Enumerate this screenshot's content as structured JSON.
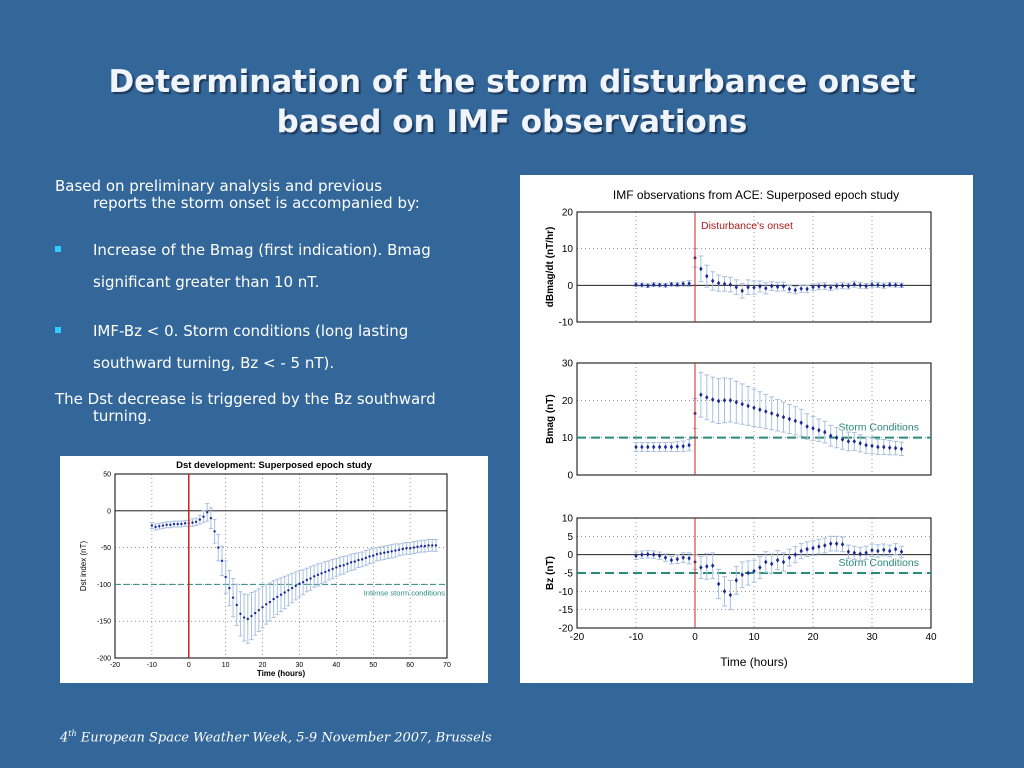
{
  "slide": {
    "title_line1": "Determination of the storm disturbance onset",
    "title_line2": "based on IMF observations",
    "intro_line1": "Based on preliminary analysis and previous",
    "intro_line2": "reports the storm onset is accompanied by:",
    "bullets": [
      {
        "line1": "Increase of the Bmag (first indication). Bmag",
        "line2": "significant greater than 10 nT."
      },
      {
        "line1": "IMF-Bz < 0. Storm conditions (long lasting",
        "line2": "southward turning, Bz < - 5 nT)."
      }
    ],
    "conclusion_line1": "The Dst decrease is triggered by the Bz southward",
    "conclusion_line2": "turning.",
    "footer_num": "4",
    "footer_sup": "th",
    "footer_text": " European Space Weather Week, 5-9 November 2007, Brussels"
  },
  "colors": {
    "background": "#336699",
    "bullet": "#33ccff",
    "onset_line": "#cc2222",
    "storm_line": "#2a8a7a",
    "data": "#1a2a9a",
    "errorbar": "#a8c0e0"
  },
  "chart_data": [
    {
      "type": "line",
      "title": "Dst development: Superposed epoch study",
      "xlabel": "Time (hours)",
      "ylabel": "Dst index (nT)",
      "xlim": [
        -20,
        70
      ],
      "ylim": [
        -200,
        50
      ],
      "xticks": [
        -20,
        -10,
        0,
        10,
        20,
        30,
        40,
        50,
        60,
        70
      ],
      "yticks": [
        50,
        0,
        -50,
        -100,
        -150,
        -200
      ],
      "grid": true,
      "reference_lines": [
        {
          "axis": "x",
          "value": 0,
          "color": "#cc2222"
        },
        {
          "axis": "y",
          "value": -100,
          "label": "Intense storm conditions",
          "style": "dashed"
        }
      ],
      "series": [
        {
          "x": [
            -10,
            -9,
            -8,
            -7,
            -6,
            -5,
            -4,
            -3,
            -2,
            -1,
            0,
            1,
            2,
            3,
            4,
            5,
            6,
            7,
            8,
            9,
            10,
            11,
            12,
            13,
            14,
            15,
            16,
            17,
            18,
            19,
            20,
            21,
            22,
            23,
            24,
            25,
            26,
            27,
            28,
            29,
            30,
            31,
            32,
            33,
            34,
            35,
            36,
            37,
            38,
            39,
            40,
            41,
            42,
            43,
            44,
            45,
            46,
            47,
            48,
            49,
            50,
            51,
            52,
            53,
            54,
            55,
            56,
            57,
            58,
            59,
            60,
            61,
            62,
            63,
            64,
            65,
            66,
            67
          ],
          "y": [
            -20,
            -22,
            -21,
            -20,
            -19,
            -19,
            -18,
            -18,
            -18,
            -17,
            -17,
            -16,
            -15,
            -12,
            -8,
            -2,
            -10,
            -28,
            -50,
            -68,
            -90,
            -105,
            -118,
            -128,
            -140,
            -145,
            -147,
            -143,
            -139,
            -135,
            -131,
            -127,
            -124,
            -120,
            -117,
            -114,
            -111,
            -108,
            -105,
            -102,
            -99,
            -97,
            -94,
            -92,
            -89,
            -87,
            -85,
            -83,
            -81,
            -79,
            -77,
            -75,
            -74,
            -72,
            -70,
            -69,
            -67,
            -66,
            -64,
            -62,
            -61,
            -59,
            -58,
            -57,
            -56,
            -55,
            -54,
            -53,
            -52,
            -51,
            -51,
            -50,
            -49,
            -48,
            -48,
            -47,
            -47,
            -47
          ],
          "err": [
            4,
            4,
            4,
            4,
            4,
            4,
            4,
            4,
            4,
            4,
            4,
            5,
            5,
            6,
            8,
            12,
            14,
            16,
            18,
            20,
            22,
            24,
            26,
            28,
            30,
            32,
            33,
            32,
            30,
            29,
            28,
            27,
            26,
            25,
            24,
            23,
            22,
            21,
            20,
            19,
            18,
            17,
            16,
            16,
            15,
            15,
            14,
            14,
            13,
            13,
            12,
            12,
            12,
            11,
            11,
            11,
            10,
            10,
            10,
            10,
            10,
            9,
            9,
            9,
            9,
            9,
            9,
            8,
            8,
            8,
            8,
            8,
            8,
            8,
            8,
            8,
            8,
            8
          ]
        }
      ]
    },
    {
      "type": "scatter",
      "title": "IMF observations from ACE: Superposed epoch study",
      "xlabel": "Time (hours)",
      "xlim": [
        -20,
        40
      ],
      "xticks": [
        -20,
        -10,
        0,
        10,
        20,
        30,
        40
      ],
      "grid": true,
      "onset_label": "Disturbance's onset",
      "panels": [
        {
          "ylabel": "dBmag/dt (nT/hr)",
          "ylim": [
            -10,
            20
          ],
          "yticks": [
            20,
            10,
            0,
            -10
          ],
          "x": [
            -10,
            -9,
            -8,
            -7,
            -6,
            -5,
            -4,
            -3,
            -2,
            -1,
            0,
            1,
            2,
            3,
            4,
            5,
            6,
            7,
            8,
            9,
            10,
            11,
            12,
            13,
            14,
            15,
            16,
            17,
            18,
            19,
            20,
            21,
            22,
            23,
            24,
            25,
            26,
            27,
            28,
            29,
            30,
            31,
            32,
            33,
            34,
            35
          ],
          "y": [
            0.2,
            0.1,
            -0.1,
            0.2,
            0.1,
            0.0,
            0.3,
            0.2,
            0.4,
            0.5,
            7.5,
            4.5,
            2.5,
            1.2,
            0.6,
            0.4,
            0.2,
            -0.5,
            -1.5,
            -0.5,
            -0.6,
            -0.3,
            -0.8,
            -0.2,
            -0.4,
            -0.3,
            -1.0,
            -1.3,
            -0.9,
            -1.0,
            -0.5,
            -0.3,
            -0.2,
            -0.6,
            -0.2,
            -0.1,
            -0.2,
            0.3,
            0.0,
            -0.2,
            0.2,
            0.1,
            -0.1,
            0.2,
            0.1,
            0.0
          ],
          "err": [
            0.5,
            0.5,
            0.5,
            0.5,
            0.5,
            0.5,
            0.5,
            0.5,
            0.6,
            0.8,
            2.5,
            3.5,
            3.0,
            2.5,
            2.2,
            2.0,
            2.0,
            2.0,
            2.0,
            2.0,
            1.8,
            1.5,
            1.5,
            1.2,
            1.2,
            1.2,
            1.0,
            1.0,
            1.0,
            1.0,
            0.9,
            0.9,
            0.9,
            0.8,
            0.8,
            0.8,
            0.8,
            0.8,
            0.8,
            0.7,
            0.7,
            0.7,
            0.7,
            0.6,
            0.6,
            0.6
          ]
        },
        {
          "ylabel": "Bmag (nT)",
          "ylim": [
            0,
            30
          ],
          "yticks": [
            30,
            20,
            10,
            0
          ],
          "storm_level": 10,
          "storm_label": "Storm Conditions",
          "x": [
            -10,
            -9,
            -8,
            -7,
            -6,
            -5,
            -4,
            -3,
            -2,
            -1,
            0,
            1,
            2,
            3,
            4,
            5,
            6,
            7,
            8,
            9,
            10,
            11,
            12,
            13,
            14,
            15,
            16,
            17,
            18,
            19,
            20,
            21,
            22,
            23,
            24,
            25,
            26,
            27,
            28,
            29,
            30,
            31,
            32,
            33,
            34,
            35
          ],
          "y": [
            7.5,
            7.5,
            7.5,
            7.5,
            7.5,
            7.5,
            7.5,
            7.6,
            7.7,
            8.0,
            16.5,
            21.5,
            20.8,
            20.2,
            19.8,
            20.0,
            20.0,
            19.5,
            19.0,
            18.5,
            18.0,
            17.5,
            17.0,
            16.5,
            16.0,
            15.5,
            15.0,
            14.5,
            14.0,
            13.0,
            12.5,
            12.0,
            11.5,
            10.5,
            10.0,
            9.5,
            9.0,
            9.0,
            8.5,
            8.0,
            7.8,
            7.5,
            7.5,
            7.3,
            7.2,
            7.0
          ],
          "err": [
            1.2,
            1.2,
            1.2,
            1.2,
            1.2,
            1.2,
            1.2,
            1.3,
            1.4,
            1.5,
            4.0,
            6.0,
            6.0,
            6.0,
            6.0,
            6.0,
            5.8,
            5.6,
            5.4,
            5.2,
            5.0,
            4.8,
            4.6,
            4.4,
            4.2,
            4.0,
            3.9,
            3.8,
            3.6,
            3.4,
            3.2,
            3.0,
            2.9,
            2.8,
            2.7,
            2.6,
            2.5,
            2.4,
            2.3,
            2.2,
            2.1,
            2.0,
            2.0,
            1.9,
            1.8,
            1.8
          ]
        },
        {
          "ylabel": "Bz (nT)",
          "ylim": [
            -20,
            10
          ],
          "yticks": [
            10,
            5,
            0,
            -5,
            -10,
            -15,
            -20
          ],
          "storm_level": -5,
          "storm_label": "Storm Conditions",
          "x": [
            -10,
            -9,
            -8,
            -7,
            -6,
            -5,
            -4,
            -3,
            -2,
            -1,
            0,
            1,
            2,
            3,
            4,
            5,
            6,
            7,
            8,
            9,
            10,
            11,
            12,
            13,
            14,
            15,
            16,
            17,
            18,
            19,
            20,
            21,
            22,
            23,
            24,
            25,
            26,
            27,
            28,
            29,
            30,
            31,
            32,
            33,
            34,
            35
          ],
          "y": [
            -0.3,
            0.0,
            0.1,
            0.0,
            -0.3,
            -0.8,
            -1.5,
            -1.2,
            -0.8,
            -1.0,
            -2.0,
            -3.5,
            -3.2,
            -3.0,
            -8.0,
            -10.0,
            -11.0,
            -7.0,
            -5.5,
            -5.0,
            -4.5,
            -3.5,
            -2.0,
            -2.5,
            -1.5,
            -2.0,
            -0.8,
            0.0,
            1.0,
            1.5,
            1.8,
            2.2,
            2.5,
            3.0,
            3.0,
            2.8,
            0.8,
            0.5,
            0.2,
            0.5,
            1.2,
            1.0,
            1.3,
            1.0,
            1.5,
            0.8
          ],
          "err": [
            1.0,
            1.0,
            1.0,
            1.0,
            1.0,
            1.0,
            1.0,
            1.2,
            1.3,
            1.5,
            2.0,
            3.0,
            3.5,
            3.5,
            4.0,
            4.0,
            4.0,
            3.8,
            3.5,
            3.3,
            3.0,
            3.0,
            2.8,
            2.7,
            2.6,
            2.5,
            2.3,
            2.2,
            2.1,
            2.0,
            2.0,
            2.0,
            2.0,
            2.0,
            2.0,
            2.0,
            1.8,
            1.8,
            1.8,
            1.8,
            1.7,
            1.7,
            1.6,
            1.6,
            1.5,
            1.5
          ]
        }
      ]
    }
  ]
}
